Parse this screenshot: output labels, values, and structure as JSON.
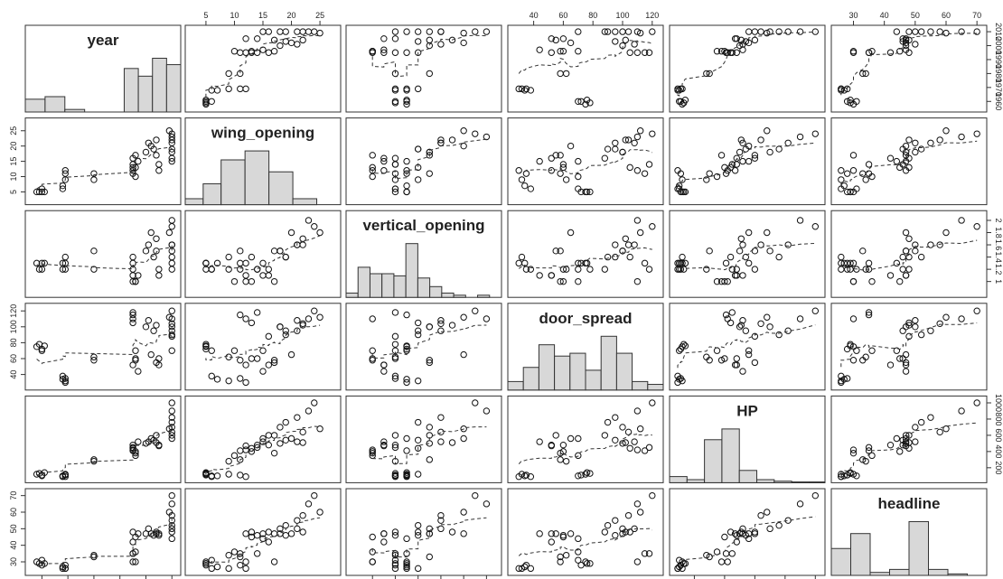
{
  "chart_data": {
    "type": "scatter-matrix",
    "variables": [
      {
        "name": "year",
        "range": [
          1955,
          2012
        ],
        "ticks": [
          1960,
          1970,
          1980,
          1990,
          2000,
          2010
        ]
      },
      {
        "name": "wing_opening",
        "range": [
          2,
          28
        ],
        "ticks": [
          5,
          10,
          15,
          20,
          25
        ]
      },
      {
        "name": "vertical_opening",
        "range": [
          0.8,
          2.1
        ],
        "ticks": [
          1.0,
          1.2,
          1.4,
          1.6,
          1.8,
          2.0
        ]
      },
      {
        "name": "door_spread",
        "range": [
          25,
          125
        ],
        "ticks": [
          40,
          60,
          80,
          100,
          120
        ]
      },
      {
        "name": "HP",
        "range": [
          60,
          1040
        ],
        "ticks": [
          200,
          400,
          600,
          800,
          1000
        ]
      },
      {
        "name": "headline",
        "range": [
          24,
          72
        ],
        "ticks": [
          30,
          40,
          50,
          60,
          70
        ]
      }
    ],
    "histograms": [
      {
        "variable": "year",
        "bins": [
          1955,
          1962,
          1969,
          1976,
          1983,
          1990,
          1995,
          2000,
          2005,
          2010
        ],
        "counts": [
          10,
          12,
          2,
          0,
          0,
          34,
          28,
          42,
          37
        ]
      },
      {
        "variable": "wing_opening",
        "bins": [
          2,
          5,
          8,
          12,
          16,
          20,
          24,
          28
        ],
        "counts": [
          4,
          14,
          30,
          36,
          22,
          4,
          0
        ]
      },
      {
        "variable": "vertical_opening",
        "bins": [
          0.8,
          0.9,
          1.0,
          1.1,
          1.2,
          1.3,
          1.4,
          1.5,
          1.6,
          1.7,
          1.8,
          1.9,
          2.0,
          2.1
        ],
        "counts": [
          4,
          28,
          22,
          22,
          20,
          50,
          18,
          10,
          4,
          2,
          0,
          2,
          0
        ]
      },
      {
        "variable": "door_spread",
        "bins": [
          25,
          35,
          45,
          55,
          65,
          75,
          85,
          95,
          105,
          115,
          125
        ],
        "counts": [
          6,
          16,
          32,
          24,
          26,
          14,
          38,
          26,
          6,
          4
        ]
      },
      {
        "variable": "HP",
        "bins": [
          60,
          170,
          280,
          390,
          500,
          610,
          720,
          830,
          940,
          1040
        ],
        "counts": [
          8,
          4,
          56,
          70,
          16,
          4,
          2,
          1,
          1
        ]
      },
      {
        "variable": "headline",
        "bins": [
          24,
          30,
          36,
          42,
          48,
          54,
          60,
          66,
          72
        ],
        "counts": [
          18,
          28,
          2,
          4,
          36,
          4,
          1,
          0
        ]
      }
    ],
    "points": [
      [
        1958,
        5,
        1.3,
        75,
        120,
        30
      ],
      [
        1959,
        5,
        1.2,
        78,
        130,
        29
      ],
      [
        1960,
        5,
        1.3,
        72,
        110,
        28
      ],
      [
        1960,
        6,
        1.2,
        70,
        100,
        31
      ],
      [
        1961,
        5,
        1.3,
        76,
        140,
        29
      ],
      [
        1968,
        6,
        1.2,
        38,
        90,
        26
      ],
      [
        1968,
        7,
        1.3,
        34,
        100,
        27
      ],
      [
        1969,
        9,
        1.4,
        32,
        120,
        26
      ],
      [
        1969,
        11,
        1.2,
        35,
        110,
        28
      ],
      [
        1969,
        12,
        1.3,
        30,
        90,
        26
      ],
      [
        1980,
        11,
        1.5,
        58,
        300,
        33
      ],
      [
        1980,
        9,
        1.2,
        62,
        280,
        34
      ],
      [
        1995,
        12,
        1.0,
        110,
        420,
        30
      ],
      [
        1995,
        14,
        1.2,
        118,
        450,
        35
      ],
      [
        1995,
        16,
        1.1,
        52,
        480,
        42
      ],
      [
        1996,
        13,
        1.0,
        60,
        400,
        45
      ],
      [
        1996,
        10,
        1.0,
        70,
        350,
        36
      ],
      [
        1997,
        15,
        1.1,
        44,
        520,
        47
      ],
      [
        1996,
        17,
        1.0,
        58,
        380,
        30
      ],
      [
        1995,
        11,
        1.3,
        115,
        410,
        35
      ],
      [
        1995,
        13,
        1.4,
        105,
        440,
        48
      ],
      [
        2000,
        18,
        1.5,
        100,
        500,
        47
      ],
      [
        2001,
        21,
        1.6,
        108,
        520,
        50
      ],
      [
        2002,
        20,
        1.8,
        65,
        560,
        47
      ],
      [
        2003,
        19,
        1.4,
        95,
        540,
        46
      ],
      [
        2004,
        17,
        1.5,
        55,
        600,
        47
      ],
      [
        2004,
        22,
        1.7,
        102,
        510,
        48
      ],
      [
        2005,
        14,
        1.2,
        60,
        480,
        46
      ],
      [
        2005,
        12,
        1.1,
        52,
        470,
        47
      ],
      [
        2009,
        25,
        1.8,
        112,
        680,
        60
      ],
      [
        2010,
        23,
        2.0,
        110,
        900,
        65
      ],
      [
        2010,
        21,
        1.6,
        95,
        820,
        55
      ],
      [
        2010,
        19,
        1.4,
        90,
        760,
        52
      ],
      [
        2010,
        18,
        1.5,
        100,
        700,
        50
      ],
      [
        2010,
        22,
        1.6,
        104,
        640,
        58
      ],
      [
        2010,
        16,
        1.2,
        88,
        600,
        48
      ],
      [
        2010,
        24,
        1.9,
        120,
        1000,
        70
      ],
      [
        2010,
        15,
        1.3,
        70,
        560,
        44
      ]
    ],
    "smoother": "lowess dashed line in each off-diagonal panel",
    "grid": false,
    "legend": "none"
  }
}
